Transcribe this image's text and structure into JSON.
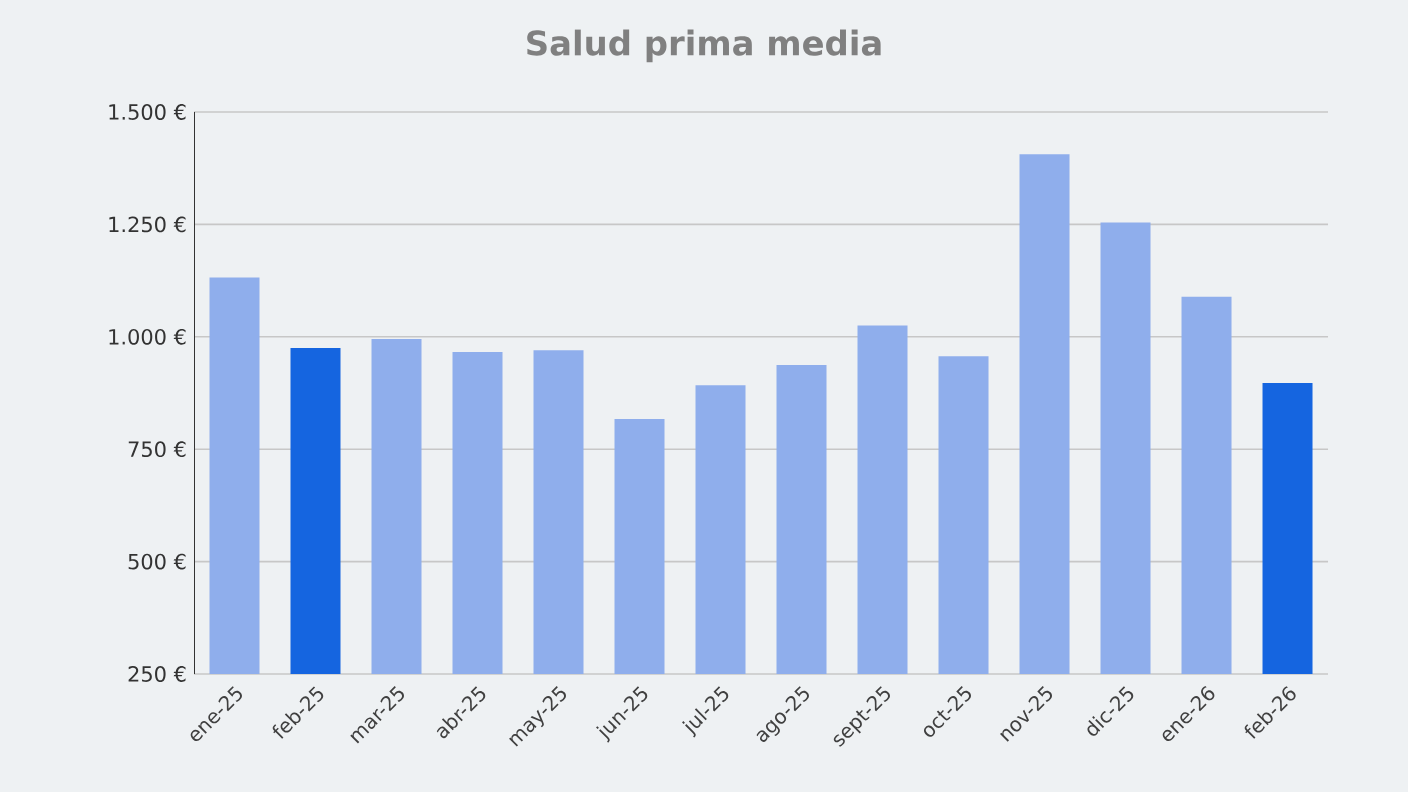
{
  "chart_data": {
    "type": "bar",
    "title": "Salud prima media",
    "categories": [
      "ene-25",
      "feb-25",
      "mar-25",
      "abr-25",
      "may-25",
      "jun-25",
      "jul-25",
      "ago-25",
      "sept-25",
      "oct-25",
      "nov-25",
      "dic-25",
      "ene-26",
      "feb-26"
    ],
    "values": [
      1132,
      975,
      995,
      966,
      970,
      817,
      892,
      937,
      1025,
      957,
      1406,
      1254,
      1089,
      897
    ],
    "colors": [
      "#8faeec",
      "#1565e0",
      "#8faeec",
      "#8faeec",
      "#8faeec",
      "#8faeec",
      "#8faeec",
      "#8faeec",
      "#8faeec",
      "#8faeec",
      "#8faeec",
      "#8faeec",
      "#8faeec",
      "#1565e0"
    ],
    "ylim": [
      250,
      1500
    ],
    "yticks": [
      {
        "value": 250,
        "label": "250 €"
      },
      {
        "value": 500,
        "label": "500 €"
      },
      {
        "value": 750,
        "label": "750 €"
      },
      {
        "value": 1000,
        "label": "1.000 €"
      },
      {
        "value": 1250,
        "label": "1.250 €"
      },
      {
        "value": 1500,
        "label": "1.500 €"
      }
    ],
    "grid": "y"
  }
}
